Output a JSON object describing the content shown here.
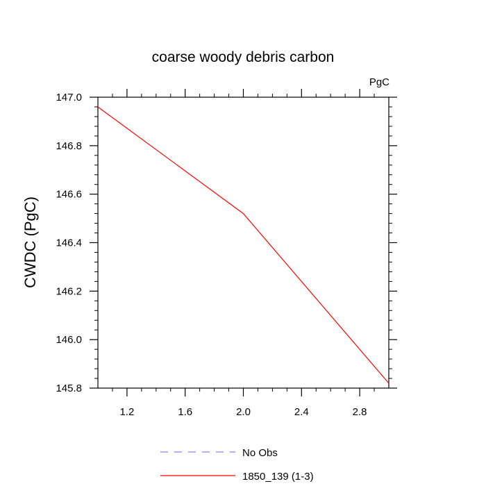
{
  "chart_data": {
    "type": "line",
    "title": "coarse woody debris carbon",
    "units_label": "PgC",
    "ylabel": "CWDC  (PgC)",
    "xlabel": "",
    "xlim": [
      1.0,
      3.0
    ],
    "ylim": [
      145.8,
      147.0
    ],
    "xticks": [
      1.2,
      1.6,
      2.0,
      2.4,
      2.8
    ],
    "xtick_labels": [
      "1.2",
      "1.6",
      "2.0",
      "2.4",
      "2.8"
    ],
    "yticks": [
      145.8,
      146.0,
      146.2,
      146.4,
      146.6,
      146.8,
      147.0
    ],
    "ytick_labels": [
      "145.8",
      "146.0",
      "146.2",
      "146.4",
      "146.6",
      "146.8",
      "147.0"
    ],
    "grid": false,
    "legend_position": "bottom",
    "series": [
      {
        "name": "1850_139 (1-3)",
        "color": "#ff0000",
        "style": "solid",
        "x": [
          1.0,
          2.0,
          3.0
        ],
        "y": [
          146.96,
          146.52,
          145.82
        ]
      }
    ],
    "legend": [
      {
        "label": "No Obs",
        "color": "#8080ff",
        "style": "dashed"
      },
      {
        "label": "1850_139 (1-3)",
        "color": "#ff0000",
        "style": "solid"
      }
    ]
  }
}
